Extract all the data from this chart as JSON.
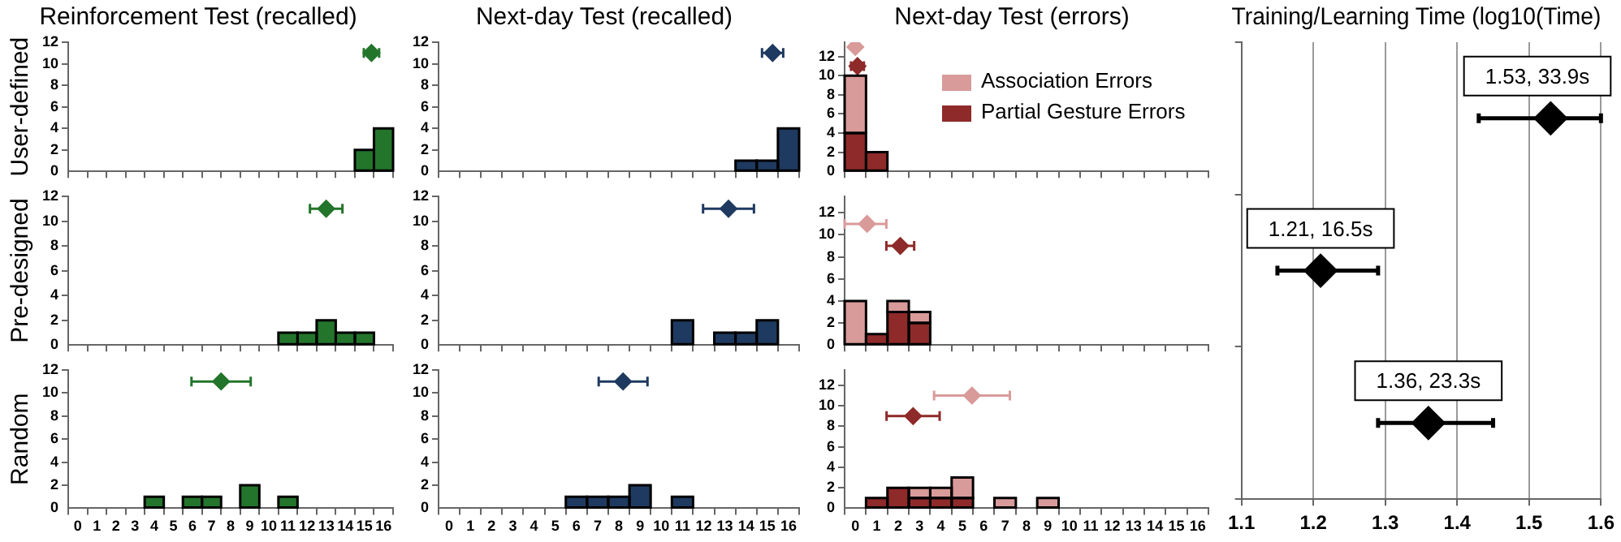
{
  "chart_data": [
    {
      "type": "histogram",
      "title": "Reinforcement Test (recalled)",
      "ylabel": "User-defined",
      "bins": [
        -0.5,
        0.5,
        1.5,
        2.5,
        3.5,
        4.5,
        5.5,
        6.5,
        7.5,
        8.5,
        9.5,
        10.5,
        11.5,
        12.5,
        13.5,
        14.5,
        15.5,
        16.5
      ],
      "xlim": [
        -0.5,
        16.5
      ],
      "xticks": [
        0,
        1,
        2,
        3,
        4,
        5,
        6,
        7,
        8,
        9,
        10,
        11,
        12,
        13,
        14,
        15,
        16
      ],
      "ylim": [
        0,
        12
      ],
      "yticks": [
        0,
        2,
        4,
        6,
        8,
        10,
        12
      ],
      "tick_labels": "y",
      "marker": "diamond",
      "series": [
        {
          "color": "#23752b",
          "values": [
            0,
            0,
            0,
            0,
            0,
            0,
            0,
            0,
            0,
            0,
            0,
            0,
            0,
            0,
            0,
            2,
            4
          ]
        },
        {
          "type": "scatter",
          "color": "#23752b",
          "x": [
            15.37
          ],
          "values": [
            11
          ],
          "xerrors": [
            0.4
          ]
        }
      ]
    },
    {
      "type": "histogram",
      "title": "Next-day Test (recalled)",
      "bins": [
        -0.5,
        0.5,
        1.5,
        2.5,
        3.5,
        4.5,
        5.5,
        6.5,
        7.5,
        8.5,
        9.5,
        10.5,
        11.5,
        12.5,
        13.5,
        14.5,
        15.5,
        16.5
      ],
      "xlim": [
        -0.5,
        16.5
      ],
      "xticks": [
        0,
        1,
        2,
        3,
        4,
        5,
        6,
        7,
        8,
        9,
        10,
        11,
        12,
        13,
        14,
        15,
        16
      ],
      "ylim": [
        0,
        12
      ],
      "yticks": [
        0,
        2,
        4,
        6,
        8,
        10,
        12
      ],
      "tick_labels": "y",
      "marker": "diamond",
      "series": [
        {
          "color": "#1f3a60",
          "values": [
            0,
            0,
            0,
            0,
            0,
            0,
            0,
            0,
            0,
            0,
            0,
            0,
            0,
            0,
            1,
            1,
            4
          ]
        },
        {
          "type": "scatter",
          "color": "#1f3a60",
          "x": [
            15.25
          ],
          "values": [
            11
          ],
          "xerrors": [
            0.5
          ]
        }
      ]
    },
    {
      "type": "bar",
      "title": "Next-day Test (errors)",
      "x": [
        0,
        1,
        2,
        3,
        4,
        5,
        6,
        7,
        8,
        9,
        10,
        11,
        12,
        13,
        14,
        15,
        16
      ],
      "xlim": [
        -0.5,
        16.5
      ],
      "xticks": [
        0,
        1,
        2,
        3,
        4,
        5,
        6,
        7,
        8,
        9,
        10,
        11,
        12,
        13,
        14,
        15,
        16
      ],
      "ylim": [
        0,
        13.5
      ],
      "yticks": [
        0,
        2,
        4,
        6,
        8,
        10,
        12
      ],
      "tick_labels": "y",
      "marker": "diamond",
      "stacked": true,
      "legend": "top right",
      "series": [
        {
          "name": "Partial Gesture Errors",
          "color": "#8e2a2a",
          "values": [
            4,
            2,
            0,
            0,
            0,
            0,
            0,
            0,
            0,
            0,
            0,
            0,
            0,
            0,
            0,
            0,
            0
          ]
        },
        {
          "name": "Association Errors",
          "color": "#d99a9a",
          "values": [
            6,
            0,
            0,
            0,
            0,
            0,
            0,
            0,
            0,
            0,
            0,
            0,
            0,
            0,
            0,
            0,
            0
          ]
        },
        {
          "type": "scatter",
          "color": "#d99a9a",
          "x": [
            0
          ],
          "values": [
            13
          ],
          "xerrors": [
            null
          ]
        },
        {
          "type": "scatter",
          "color": "#8e2a2a",
          "x": [
            0.1
          ],
          "values": [
            11
          ],
          "xerrors": [
            0.3
          ]
        }
      ]
    },
    {
      "type": "histogram",
      "ylabel": "Pre-designed",
      "bins": [
        -0.5,
        0.5,
        1.5,
        2.5,
        3.5,
        4.5,
        5.5,
        6.5,
        7.5,
        8.5,
        9.5,
        10.5,
        11.5,
        12.5,
        13.5,
        14.5,
        15.5,
        16.5
      ],
      "xlim": [
        -0.5,
        16.5
      ],
      "xticks": [
        0,
        1,
        2,
        3,
        4,
        5,
        6,
        7,
        8,
        9,
        10,
        11,
        12,
        13,
        14,
        15,
        16
      ],
      "ylim": [
        0,
        12
      ],
      "yticks": [
        0,
        2,
        4,
        6,
        8,
        10,
        12
      ],
      "tick_labels": "y",
      "marker": "diamond",
      "series": [
        {
          "color": "#23752b",
          "values": [
            0,
            0,
            0,
            0,
            0,
            0,
            0,
            0,
            0,
            0,
            0,
            1,
            1,
            2,
            1,
            1,
            0
          ]
        },
        {
          "type": "scatter",
          "color": "#23752b",
          "x": [
            13.0
          ],
          "values": [
            11
          ],
          "xerrors": [
            0.85
          ]
        }
      ]
    },
    {
      "type": "histogram",
      "bins": [
        -0.5,
        0.5,
        1.5,
        2.5,
        3.5,
        4.5,
        5.5,
        6.5,
        7.5,
        8.5,
        9.5,
        10.5,
        11.5,
        12.5,
        13.5,
        14.5,
        15.5,
        16.5
      ],
      "xlim": [
        -0.5,
        16.5
      ],
      "xticks": [
        0,
        1,
        2,
        3,
        4,
        5,
        6,
        7,
        8,
        9,
        10,
        11,
        12,
        13,
        14,
        15,
        16
      ],
      "ylim": [
        0,
        12
      ],
      "yticks": [
        0,
        2,
        4,
        6,
        8,
        10,
        12
      ],
      "tick_labels": "y",
      "marker": "diamond",
      "series": [
        {
          "color": "#1f3a60",
          "values": [
            0,
            0,
            0,
            0,
            0,
            0,
            0,
            0,
            0,
            0,
            0,
            2,
            0,
            1,
            1,
            2,
            0
          ]
        },
        {
          "type": "scatter",
          "color": "#1f3a60",
          "x": [
            13.17
          ],
          "values": [
            11
          ],
          "xerrors": [
            1.2
          ]
        }
      ]
    },
    {
      "type": "bar",
      "x": [
        0,
        1,
        2,
        3,
        4,
        5,
        6,
        7,
        8,
        9,
        10,
        11,
        12,
        13,
        14,
        15,
        16
      ],
      "xlim": [
        -0.5,
        16.5
      ],
      "xticks": [
        0,
        1,
        2,
        3,
        4,
        5,
        6,
        7,
        8,
        9,
        10,
        11,
        12,
        13,
        14,
        15,
        16
      ],
      "ylim": [
        0,
        13.5
      ],
      "yticks": [
        0,
        2,
        4,
        6,
        8,
        10,
        12
      ],
      "tick_labels": "y",
      "marker": "diamond",
      "stacked": true,
      "series": [
        {
          "color": "#8e2a2a",
          "values": [
            0,
            1,
            3,
            2,
            0,
            0,
            0,
            0,
            0,
            0,
            0,
            0,
            0,
            0,
            0,
            0,
            0
          ]
        },
        {
          "color": "#d99a9a",
          "values": [
            4,
            0,
            1,
            1,
            0,
            0,
            0,
            0,
            0,
            0,
            0,
            0,
            0,
            0,
            0,
            0,
            0
          ]
        },
        {
          "type": "scatter",
          "color": "#d99a9a",
          "x": [
            0.55
          ],
          "values": [
            11
          ],
          "xerrors": [
            [
              -0.5,
              1.45
            ]
          ]
        },
        {
          "type": "scatter",
          "color": "#8e2a2a",
          "x": [
            2.1
          ],
          "values": [
            9
          ],
          "xerrors": [
            0.65
          ]
        }
      ]
    },
    {
      "type": "histogram",
      "ylabel": "Random",
      "bins": [
        -0.5,
        0.5,
        1.5,
        2.5,
        3.5,
        4.5,
        5.5,
        6.5,
        7.5,
        8.5,
        9.5,
        10.5,
        11.5,
        12.5,
        13.5,
        14.5,
        15.5,
        16.5
      ],
      "xlim": [
        -0.5,
        16.5
      ],
      "xticks": [
        0,
        1,
        2,
        3,
        4,
        5,
        6,
        7,
        8,
        9,
        10,
        11,
        12,
        13,
        14,
        15,
        16
      ],
      "ylim": [
        0,
        12
      ],
      "yticks": [
        0,
        2,
        4,
        6,
        8,
        10,
        12
      ],
      "marker": "diamond",
      "series": [
        {
          "color": "#23752b",
          "values": [
            0,
            0,
            0,
            0,
            1,
            0,
            1,
            1,
            0,
            2,
            0,
            1,
            0,
            0,
            0,
            0,
            0
          ]
        },
        {
          "type": "scatter",
          "color": "#23752b",
          "x": [
            7.5
          ],
          "values": [
            11
          ],
          "xerrors": [
            1.55
          ]
        }
      ]
    },
    {
      "type": "histogram",
      "bins": [
        -0.5,
        0.5,
        1.5,
        2.5,
        3.5,
        4.5,
        5.5,
        6.5,
        7.5,
        8.5,
        9.5,
        10.5,
        11.5,
        12.5,
        13.5,
        14.5,
        15.5,
        16.5
      ],
      "xlim": [
        -0.5,
        16.5
      ],
      "xticks": [
        0,
        1,
        2,
        3,
        4,
        5,
        6,
        7,
        8,
        9,
        10,
        11,
        12,
        13,
        14,
        15,
        16
      ],
      "ylim": [
        0,
        12
      ],
      "yticks": [
        0,
        2,
        4,
        6,
        8,
        10,
        12
      ],
      "marker": "diamond",
      "series": [
        {
          "color": "#1f3a60",
          "values": [
            0,
            0,
            0,
            0,
            0,
            0,
            1,
            1,
            1,
            2,
            0,
            1,
            0,
            0,
            0,
            0,
            0
          ]
        },
        {
          "type": "scatter",
          "color": "#1f3a60",
          "x": [
            8.2
          ],
          "values": [
            11
          ],
          "xerrors": [
            1.15
          ]
        }
      ]
    },
    {
      "type": "bar",
      "x": [
        0,
        1,
        2,
        3,
        4,
        5,
        6,
        7,
        8,
        9,
        10,
        11,
        12,
        13,
        14,
        15,
        16
      ],
      "xlim": [
        -0.5,
        16.5
      ],
      "xticks": [
        0,
        1,
        2,
        3,
        4,
        5,
        6,
        7,
        8,
        9,
        10,
        11,
        12,
        13,
        14,
        15,
        16
      ],
      "ylim": [
        0,
        13.5
      ],
      "yticks": [
        0,
        2,
        4,
        6,
        8,
        10,
        12
      ],
      "marker": "diamond",
      "stacked": true,
      "series": [
        {
          "color": "#8e2a2a",
          "values": [
            0,
            1,
            2,
            1,
            1,
            1,
            0,
            0,
            0,
            0,
            0,
            0,
            0,
            0,
            0,
            0,
            0
          ]
        },
        {
          "color": "#d99a9a",
          "values": [
            0,
            0,
            0,
            1,
            1,
            2,
            0,
            1,
            0,
            1,
            0,
            0,
            0,
            0,
            0,
            0,
            0
          ]
        },
        {
          "type": "scatter",
          "color": "#d99a9a",
          "x": [
            5.45
          ],
          "values": [
            11
          ],
          "xerrors": [
            1.77
          ]
        },
        {
          "type": "scatter",
          "color": "#8e2a2a",
          "x": [
            2.7
          ],
          "values": [
            9
          ],
          "xerrors": [
            1.24
          ]
        }
      ]
    },
    {
      "type": "scatter",
      "title": "Training/Learning Time (log10(Time)",
      "orientation": "horizontal",
      "categories": [
        null,
        null,
        null
      ],
      "values": [
        1.53,
        1.21,
        1.36
      ],
      "errors": [
        [
          1.43,
          1.6
        ],
        [
          1.15,
          1.29
        ],
        [
          1.29,
          1.45
        ]
      ],
      "value_labels": [
        "1.53, 33.9s",
        "1.21, 16.5s",
        "1.36, 23.3s"
      ],
      "color": "#000000",
      "marker": "diamond",
      "xlim": [
        1.1,
        1.6
      ],
      "xticks": [
        1.1,
        1.2,
        1.3,
        1.4,
        1.5,
        1.6
      ],
      "grid": "x",
      "tick_labels": "x"
    }
  ]
}
